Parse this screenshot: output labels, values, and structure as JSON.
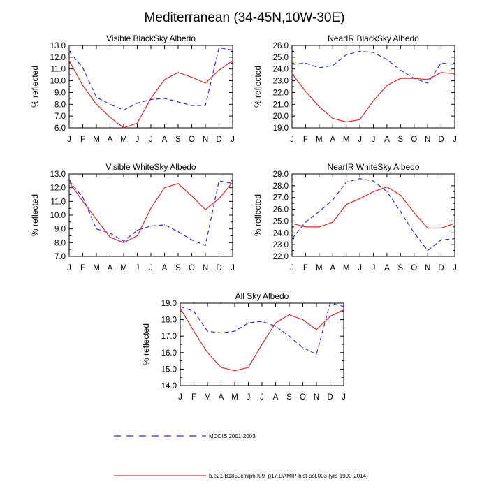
{
  "title": "Mediterranean (34-45N,10W-30E)",
  "legend": [
    {
      "label": "MODIS 2001-2003",
      "color": "#2a2ae6",
      "dash": true
    },
    {
      "label": "b.e21.B1850cmip6.f09_g17.DAMIP-hist-sol.003 (yrs 1990-2014)",
      "color": "#e8262a",
      "dash": false
    }
  ],
  "chart_data": [
    {
      "type": "line",
      "title": "Visible BlackSky Albedo",
      "ylabel": "% reflected",
      "categories": [
        "J",
        "F",
        "M",
        "A",
        "M",
        "J",
        "J",
        "A",
        "S",
        "O",
        "N",
        "D",
        "J"
      ],
      "ylim": [
        6.0,
        13.0
      ],
      "yticks": [
        "6.0",
        "7.0",
        "8.0",
        "9.0",
        "10.0",
        "11.0",
        "12.0",
        "13.0"
      ],
      "series": [
        {
          "name": "MODIS 2001-2003",
          "values": [
            12.5,
            11.1,
            8.6,
            8.0,
            7.5,
            8.1,
            8.4,
            8.5,
            8.2,
            7.9,
            7.9,
            12.8,
            12.6
          ]
        },
        {
          "name": "b.e21.B1850cmip6.f09_g17.DAMIP-hist-sol.003 (yrs 1990-2014)",
          "values": [
            11.7,
            9.6,
            8.0,
            6.9,
            6.0,
            6.4,
            8.5,
            10.1,
            10.7,
            10.3,
            9.8,
            10.9,
            11.7
          ]
        }
      ]
    },
    {
      "type": "line",
      "title": "NearIR BlackSky Albedo",
      "ylabel": "% reflected",
      "categories": [
        "J",
        "F",
        "M",
        "A",
        "M",
        "J",
        "J",
        "A",
        "S",
        "O",
        "N",
        "D",
        "J"
      ],
      "ylim": [
        19.0,
        26.0
      ],
      "yticks": [
        "19.0",
        "20.0",
        "21.0",
        "22.0",
        "23.0",
        "24.0",
        "25.0",
        "26.0"
      ],
      "series": [
        {
          "name": "MODIS 2001-2003",
          "values": [
            24.4,
            24.5,
            24.1,
            24.3,
            25.2,
            25.5,
            25.4,
            24.8,
            23.9,
            23.2,
            22.8,
            24.5,
            24.4
          ]
        },
        {
          "name": "b.e21.B1850cmip6.f09_g17.DAMIP-hist-sol.003 (yrs 1990-2014)",
          "values": [
            23.6,
            22.1,
            20.8,
            19.8,
            19.5,
            19.7,
            21.3,
            22.6,
            23.2,
            23.2,
            23.1,
            23.7,
            23.6
          ]
        }
      ]
    },
    {
      "type": "line",
      "title": "Visible WhiteSky Albedo",
      "ylabel": "% reflected",
      "categories": [
        "J",
        "F",
        "M",
        "A",
        "M",
        "J",
        "J",
        "A",
        "S",
        "O",
        "N",
        "D",
        "J"
      ],
      "ylim": [
        7.0,
        13.0
      ],
      "yticks": [
        "7.0",
        "8.0",
        "9.0",
        "10.0",
        "11.0",
        "12.0",
        "13.0"
      ],
      "series": [
        {
          "name": "MODIS 2001-2003",
          "values": [
            12.5,
            11.3,
            9.0,
            8.7,
            8.1,
            8.9,
            9.2,
            9.3,
            8.8,
            8.2,
            7.8,
            12.5,
            12.3
          ]
        },
        {
          "name": "b.e21.B1850cmip6.f09_g17.DAMIP-hist-sol.003 (yrs 1990-2014)",
          "values": [
            12.4,
            11.0,
            9.7,
            8.4,
            8.0,
            8.5,
            10.5,
            12.0,
            12.3,
            11.4,
            10.4,
            11.2,
            12.4
          ]
        }
      ]
    },
    {
      "type": "line",
      "title": "NearIR WhiteSky Albedo",
      "ylabel": "% reflected",
      "categories": [
        "J",
        "F",
        "M",
        "A",
        "M",
        "J",
        "J",
        "A",
        "S",
        "O",
        "N",
        "D",
        "J"
      ],
      "ylim": [
        22.0,
        29.0
      ],
      "yticks": [
        "22.0",
        "23.0",
        "24.0",
        "25.0",
        "26.0",
        "27.0",
        "28.0",
        "29.0"
      ],
      "series": [
        {
          "name": "MODIS 2001-2003",
          "values": [
            23.5,
            24.9,
            25.8,
            26.8,
            28.3,
            28.6,
            28.4,
            27.5,
            25.8,
            24.0,
            22.5,
            23.4,
            23.5
          ]
        },
        {
          "name": "b.e21.B1850cmip6.f09_g17.DAMIP-hist-sol.003 (yrs 1990-2014)",
          "values": [
            24.8,
            24.5,
            24.5,
            24.9,
            26.4,
            26.9,
            27.5,
            27.9,
            27.2,
            25.7,
            24.4,
            24.4,
            24.8
          ]
        }
      ]
    },
    {
      "type": "line",
      "title": "All Sky Albedo",
      "ylabel": "% reflected",
      "categories": [
        "J",
        "F",
        "M",
        "A",
        "M",
        "J",
        "J",
        "A",
        "S",
        "O",
        "N",
        "D",
        "J"
      ],
      "ylim": [
        14.0,
        19.0
      ],
      "yticks": [
        "14.0",
        "15.0",
        "16.0",
        "17.0",
        "18.0",
        "19.0"
      ],
      "series": [
        {
          "name": "MODIS 2001-2003",
          "values": [
            18.8,
            18.5,
            17.3,
            17.2,
            17.3,
            17.8,
            17.9,
            17.6,
            17.0,
            16.3,
            15.9,
            19.0,
            18.8
          ]
        },
        {
          "name": "b.e21.B1850cmip6.f09_g17.DAMIP-hist-sol.003 (yrs 1990-2014)",
          "values": [
            18.7,
            17.3,
            16.0,
            15.1,
            14.9,
            15.1,
            16.5,
            17.8,
            18.3,
            18.0,
            17.4,
            18.2,
            18.6
          ]
        }
      ]
    }
  ]
}
